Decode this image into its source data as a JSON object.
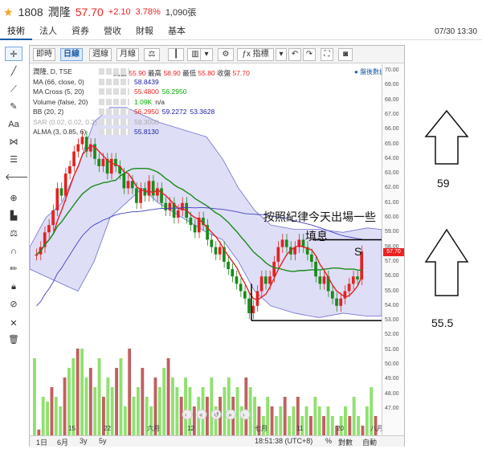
{
  "header": {
    "code": "1808",
    "name": "潤隆",
    "price": "57.70",
    "change": "+2.10",
    "change_pct": "3.78%",
    "volume": "1,090張"
  },
  "tabs": [
    "技術",
    "法人",
    "資券",
    "營收",
    "財報",
    "基本"
  ],
  "datetime": "07/30 13:30",
  "chart_toolbar": {
    "intraday": "即時",
    "daily": "日線",
    "weekly": "週線",
    "monthly": "月線",
    "indicators": "指標"
  },
  "ohlc": {
    "open_label": "開盤",
    "open": "55.90",
    "high_label": "最高",
    "high": "58.90",
    "low_label": "最低",
    "low": "55.80",
    "close_label": "收盤",
    "close": "57.70"
  },
  "symbol_line": "潤隆, D, TSE",
  "brand": "盤後數據",
  "legend": {
    "ma": {
      "label": "MA (66, close, 0)",
      "value": "58.8439"
    },
    "macross": {
      "label": "MA Cross (5, 20)",
      "v1": "55.4800",
      "v2": "56.2950"
    },
    "volume": {
      "label": "Volume (false, 20)",
      "v1": "1.09K",
      "v2": "n/a"
    },
    "bb": {
      "label": "BB (20, 2)",
      "v1": "56.2950",
      "v2": "59.2272",
      "v3": "53.3628"
    },
    "sar": {
      "label": "SAR (0.02, 0.02, 0.2)",
      "v1": "59.3000"
    },
    "alma": {
      "label": "ALMA (3, 0.85, 6)",
      "value": "55.8130"
    }
  },
  "annotations": {
    "note_line1": "按照紀律今天出場一些",
    "note_line2": "填息",
    "marker": "S",
    "target_up": "59",
    "target_down": "55.5"
  },
  "yaxis_ticks": [
    "70.00",
    "69.00",
    "68.00",
    "67.00",
    "66.00",
    "65.00",
    "64.00",
    "63.00",
    "62.00",
    "61.00",
    "60.00",
    "59.00",
    "58.00",
    "57.00",
    "56.00",
    "55.00",
    "54.00",
    "53.00",
    "52.00",
    "51.00",
    "50.00",
    "49.00",
    "48.00",
    "47.00"
  ],
  "price_tag": "57.70",
  "xaxis_labels": [
    "15",
    "22",
    "六月",
    "12",
    "七月",
    "11",
    "20",
    "八月"
  ],
  "bottombar": {
    "r1d": "1日",
    "r6m": "6月",
    "r3y": "3y",
    "r5y": "5y",
    "time": "18:51:38 (UTC+8)",
    "pct": "%",
    "log": "對數",
    "auto": "自動"
  },
  "colors": {
    "up": "#e22222",
    "down": "#1a8a1a",
    "bb_fill": "#c8c8f0",
    "vol_up": "#c06060",
    "vol_down": "#90e070",
    "accent": "#1a5ca8"
  }
}
